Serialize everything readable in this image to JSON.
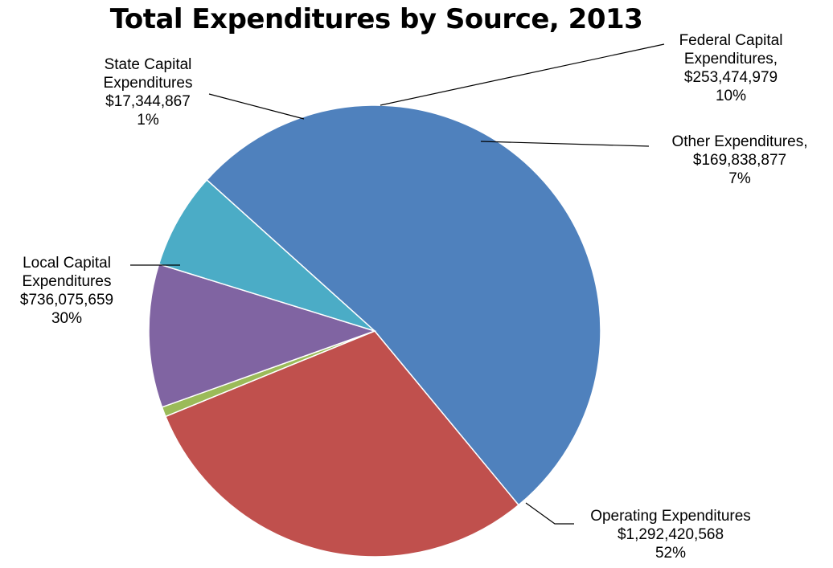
{
  "chart_data": {
    "type": "pie",
    "title": "Total Expenditures by Source, 2013",
    "slices": [
      {
        "label_lines": [
          "Operating Expenditures",
          "$1,292,420,568",
          "52%"
        ],
        "value": 1292420568,
        "percent": "52%",
        "color": "#4f81bd"
      },
      {
        "label_lines": [
          "Local Capital",
          "Expenditures",
          "$736,075,659",
          "30%"
        ],
        "value": 736075659,
        "percent": "30%",
        "color": "#c0504d"
      },
      {
        "label_lines": [
          "State Capital",
          "Expenditures",
          "$17,344,867",
          "1%"
        ],
        "value": 17344867,
        "percent": "1%",
        "color": "#9bbb59"
      },
      {
        "label_lines": [
          "Federal Capital",
          "Expenditures,",
          "$253,474,979",
          "10%"
        ],
        "value": 253474979,
        "percent": "10%",
        "color": "#8064a2"
      },
      {
        "label_lines": [
          "Other Expenditures,",
          "$169,838,877",
          "7%"
        ],
        "value": 169838877,
        "percent": "7%",
        "color": "#4bacc6"
      }
    ]
  }
}
